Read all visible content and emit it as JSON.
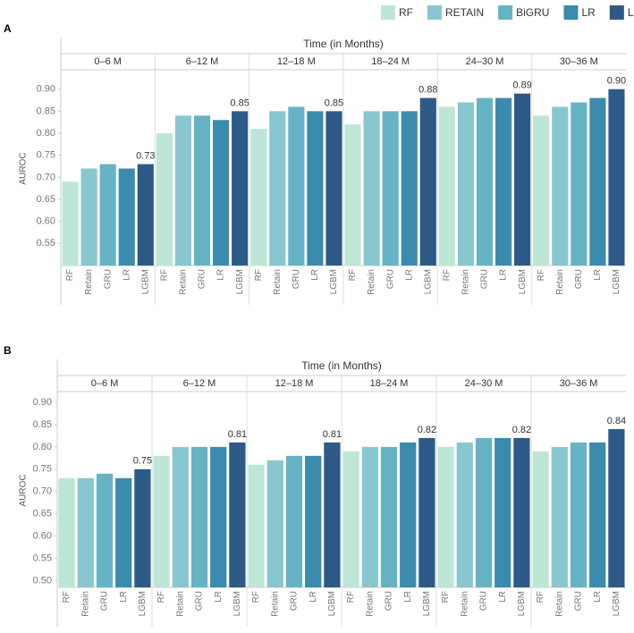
{
  "legend": {
    "names": [
      "RF",
      "RETAIN",
      "BiGRU",
      "LR",
      "LGBM"
    ],
    "colors": [
      "#bde6d6",
      "#88c7cf",
      "#66b3c5",
      "#3b8bae",
      "#2d5a87"
    ]
  },
  "chart_data": [
    {
      "type": "bar",
      "panel": "A",
      "title": "Time (in Months)",
      "y_label": "AUROC",
      "categories": [
        "RF",
        "Retain",
        "GRU",
        "LR",
        "LGBM"
      ],
      "ylim": [
        0.5,
        0.94
      ],
      "yticks": [
        {
          "value": 0.55,
          "label": "0.55"
        },
        {
          "value": 0.6,
          "label": "0.60"
        },
        {
          "value": 0.65,
          "label": "0.65"
        },
        {
          "value": 0.7,
          "label": "0.70"
        },
        {
          "value": 0.75,
          "label": "0.75"
        },
        {
          "value": 0.8,
          "label": "0.80"
        },
        {
          "value": 0.85,
          "label": "0.85"
        },
        {
          "value": 0.9,
          "label": "0.90"
        }
      ],
      "facets": [
        {
          "name": "0–6 M",
          "values": [
            0.69,
            0.72,
            0.73,
            0.72,
            0.73
          ],
          "value_labels": [
            null,
            null,
            null,
            null,
            "0.73"
          ]
        },
        {
          "name": "6–12 M",
          "values": [
            0.8,
            0.84,
            0.84,
            0.83,
            0.85
          ],
          "value_labels": [
            null,
            null,
            null,
            null,
            "0.85"
          ]
        },
        {
          "name": "12–18 M",
          "values": [
            0.81,
            0.85,
            0.86,
            0.85,
            0.85
          ],
          "value_labels": [
            null,
            null,
            null,
            null,
            "0.85"
          ]
        },
        {
          "name": "18–24 M",
          "values": [
            0.82,
            0.85,
            0.85,
            0.85,
            0.88
          ],
          "value_labels": [
            null,
            null,
            null,
            null,
            "0.88"
          ]
        },
        {
          "name": "24–30 M",
          "values": [
            0.86,
            0.87,
            0.88,
            0.88,
            0.89
          ],
          "value_labels": [
            null,
            null,
            null,
            null,
            "0.89"
          ]
        },
        {
          "name": "30–36 M",
          "values": [
            0.84,
            0.86,
            0.87,
            0.88,
            0.9
          ],
          "value_labels": [
            null,
            null,
            null,
            null,
            "0.90"
          ]
        }
      ]
    },
    {
      "type": "bar",
      "panel": "B",
      "title": "Time (in Months)",
      "y_label": "AUROC",
      "categories": [
        "RF",
        "Retain",
        "GRU",
        "LR",
        "LGBM"
      ],
      "ylim": [
        0.485,
        0.92
      ],
      "yticks": [
        {
          "value": 0.5,
          "label": "0.50"
        },
        {
          "value": 0.55,
          "label": "0.55"
        },
        {
          "value": 0.6,
          "label": "0.60"
        },
        {
          "value": 0.65,
          "label": "0.65"
        },
        {
          "value": 0.7,
          "label": "0.70"
        },
        {
          "value": 0.75,
          "label": "0.75"
        },
        {
          "value": 0.8,
          "label": "0.80"
        },
        {
          "value": 0.85,
          "label": "0.85"
        },
        {
          "value": 0.9,
          "label": "0.90"
        }
      ],
      "facets": [
        {
          "name": "0–6 M",
          "values": [
            0.73,
            0.73,
            0.74,
            0.73,
            0.75
          ],
          "value_labels": [
            null,
            null,
            null,
            null,
            "0.75"
          ]
        },
        {
          "name": "6–12 M",
          "values": [
            0.78,
            0.8,
            0.8,
            0.8,
            0.81
          ],
          "value_labels": [
            null,
            null,
            null,
            null,
            "0.81"
          ]
        },
        {
          "name": "12–18 M",
          "values": [
            0.76,
            0.77,
            0.78,
            0.78,
            0.81
          ],
          "value_labels": [
            null,
            null,
            null,
            null,
            "0.81"
          ]
        },
        {
          "name": "18–24 M",
          "values": [
            0.79,
            0.8,
            0.8,
            0.81,
            0.82
          ],
          "value_labels": [
            null,
            null,
            null,
            null,
            "0.82"
          ]
        },
        {
          "name": "24–30 M",
          "values": [
            0.8,
            0.81,
            0.82,
            0.82,
            0.82
          ],
          "value_labels": [
            null,
            null,
            null,
            null,
            "0.82"
          ]
        },
        {
          "name": "30–36 M",
          "values": [
            0.79,
            0.8,
            0.81,
            0.81,
            0.84
          ],
          "value_labels": [
            null,
            null,
            null,
            null,
            "0.84"
          ]
        }
      ]
    }
  ]
}
